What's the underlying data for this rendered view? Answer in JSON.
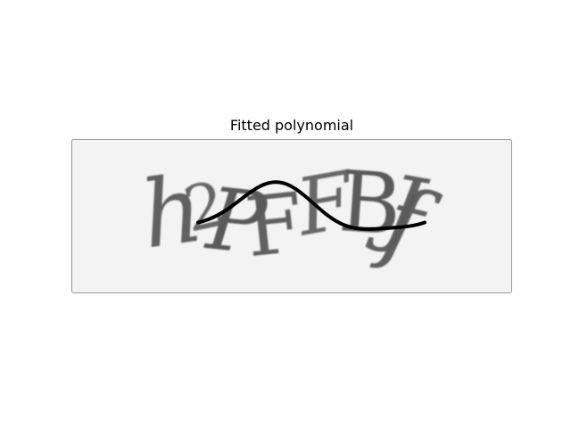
{
  "figure": {
    "title": "Fitted polynomial"
  },
  "captcha": {
    "text": "hPFBJf",
    "background_color": "#f3f3f3",
    "glyph_color": "#5a5a5a"
  },
  "curve": {
    "color": "#000000"
  }
}
